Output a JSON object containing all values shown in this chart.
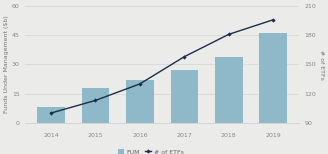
{
  "years": [
    "2014",
    "2015",
    "2016",
    "2017",
    "2018",
    "2019"
  ],
  "fum": [
    8,
    18,
    22,
    27,
    34,
    46
  ],
  "num_etfs": [
    100,
    113,
    130,
    158,
    181,
    196
  ],
  "bar_color": "#8fb8c8",
  "line_color": "#1c2f4a",
  "marker_color": "#1c2f4a",
  "fum_ylabel": "Funds Under Management ($b)",
  "etf_ylabel": "# of ETFs",
  "ylim_left": [
    0,
    60
  ],
  "ylim_right": [
    90,
    210
  ],
  "yticks_left": [
    0,
    15,
    30,
    45,
    60
  ],
  "yticks_right": [
    90,
    120,
    150,
    180,
    210
  ],
  "legend_labels": [
    "FUM",
    "# of ETFs"
  ],
  "background_color": "#ebebea",
  "plot_bg_color": "#ebebea",
  "grid_color": "#d8d8d4",
  "axis_fontsize": 4.5,
  "tick_fontsize": 4.5,
  "spine_color": "#cccccc"
}
